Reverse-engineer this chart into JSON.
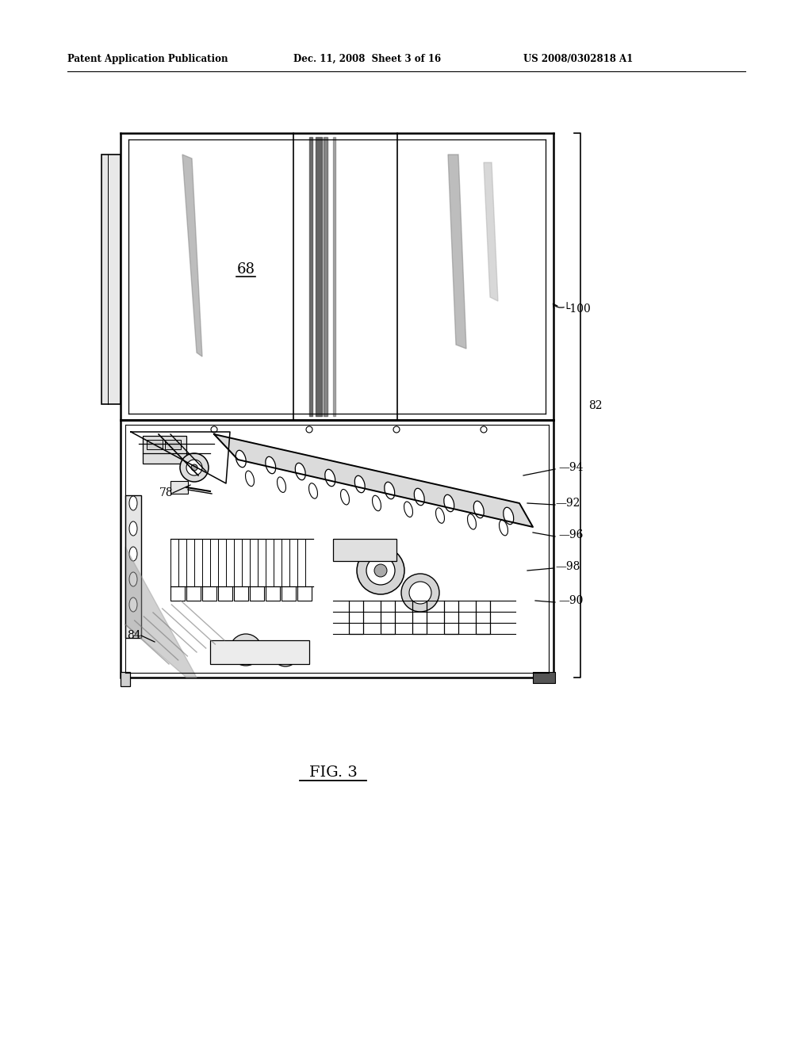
{
  "header_left": "Patent Application Publication",
  "header_mid": "Dec. 11, 2008  Sheet 3 of 16",
  "header_right": "US 2008/0302818 A1",
  "fig_caption": "FIG. 3",
  "background_color": "#ffffff",
  "line_color": "#000000"
}
